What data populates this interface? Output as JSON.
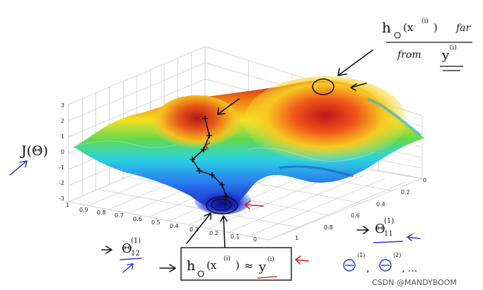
{
  "axes": {
    "z_label": "J(Θ)",
    "z_ticks": [
      "3",
      "2",
      "1",
      "0",
      "-1",
      "-2",
      "-3"
    ],
    "x_label_main": "Θ",
    "x_label_sub": "12",
    "x_label_sup": "(1)",
    "x_ticks": [
      "1",
      "0.9",
      "0.8",
      "0.7",
      "0.6",
      "0.5",
      "0.4",
      "0.3",
      "0.2",
      "0.1",
      "0"
    ],
    "y_label_main": "Θ",
    "y_label_sub": "11",
    "y_label_sup": "(1)",
    "y_ticks": [
      "0",
      "0.2",
      "0.4",
      "0.6",
      "0.8",
      "1"
    ]
  },
  "annotations": {
    "top_note_line1": "h",
    "top_note_line1_theta": "Θ",
    "top_note_line1_arg": "(x",
    "top_note_line1_sup": "(i)",
    "top_note_line1_close": ")",
    "top_note_far": "far",
    "top_note_line2": "from",
    "top_note_y": "y",
    "top_note_y_sup": "(i)",
    "bottom_box_h": "h",
    "bottom_box_theta": "Θ",
    "bottom_box_arg": "(x",
    "bottom_box_sup": "(i)",
    "bottom_box_close": ")",
    "bottom_box_approx": "≈",
    "bottom_box_y": "y",
    "bottom_box_y_sup": "(i)",
    "theta_list": "Θ",
    "theta_list_sup1": "(1)",
    "theta_list_sup2": "(2)",
    "theta_list_tail": ", ...",
    "theta_list_comma": ","
  },
  "watermark": "CSDN @MANDYBOOM"
}
